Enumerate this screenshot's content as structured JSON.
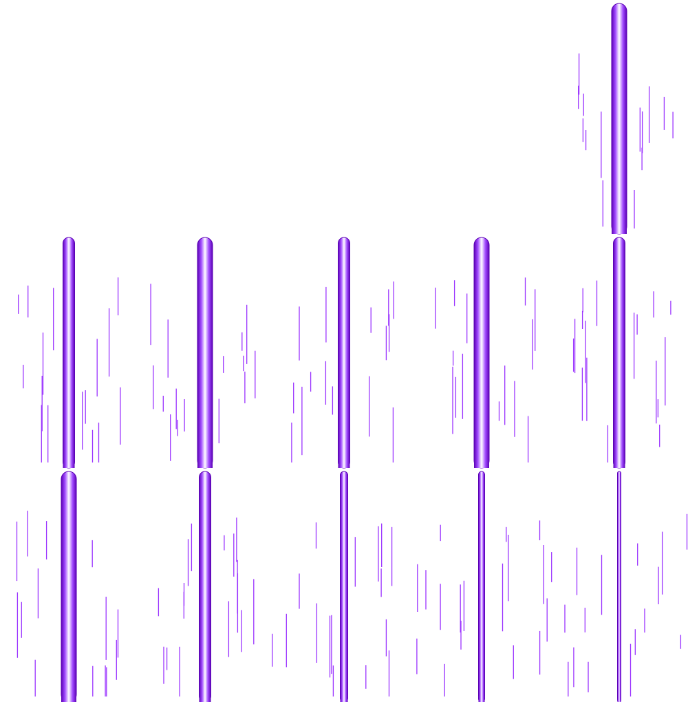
{
  "sheet": {
    "background": "#ffffff",
    "beam_colors": {
      "edge": "#5a00b4",
      "mid": "#a24cff",
      "core": "#ffffff"
    },
    "streak_color": "#9a33ff"
  },
  "frames": [
    {
      "row": 0,
      "col": 4,
      "beam_width": "wide",
      "streaks": 14
    },
    {
      "row": 1,
      "col": 0,
      "beam_width": "medium",
      "streaks": 16
    },
    {
      "row": 1,
      "col": 1,
      "beam_width": "wide",
      "streaks": 15
    },
    {
      "row": 1,
      "col": 2,
      "beam_width": "medium",
      "streaks": 15
    },
    {
      "row": 1,
      "col": 3,
      "beam_width": "wide",
      "streaks": 14
    },
    {
      "row": 1,
      "col": 4,
      "beam_width": "medium",
      "streaks": 17
    },
    {
      "row": 2,
      "col": 0,
      "beam_width": "wide",
      "streaks": 14
    },
    {
      "row": 2,
      "col": 1,
      "beam_width": "medium",
      "streaks": 16
    },
    {
      "row": 2,
      "col": 2,
      "beam_width": "narrow",
      "streaks": 16
    },
    {
      "row": 2,
      "col": 3,
      "beam_width": "thin",
      "streaks": 17
    },
    {
      "row": 2,
      "col": 4,
      "beam_width": "hairline",
      "streaks": 16
    }
  ]
}
